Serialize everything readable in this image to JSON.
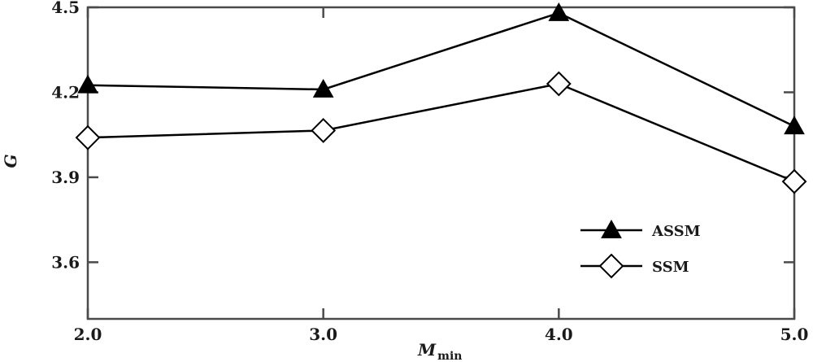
{
  "chart_data": {
    "type": "line",
    "x": [
      2.0,
      3.0,
      4.0,
      5.0
    ],
    "xticks": [
      "2.0",
      "3.0",
      "4.0",
      "5.0"
    ],
    "yticks": [
      "3.6",
      "3.9",
      "4.2",
      "4.5"
    ],
    "xlim": [
      2.0,
      5.0
    ],
    "ylim": [
      3.4,
      4.5
    ],
    "xlabel_main": "M",
    "xlabel_sub": "min",
    "ylabel": "G",
    "legend_position": "lower-right",
    "grid": false,
    "series": [
      {
        "name": "ASSM",
        "marker": "filled-triangle",
        "color": "#000000",
        "values": [
          4.225,
          4.21,
          4.48,
          4.08
        ]
      },
      {
        "name": "SSM",
        "marker": "open-diamond",
        "color": "#000000",
        "values": [
          4.04,
          4.065,
          4.23,
          3.885
        ]
      }
    ]
  }
}
